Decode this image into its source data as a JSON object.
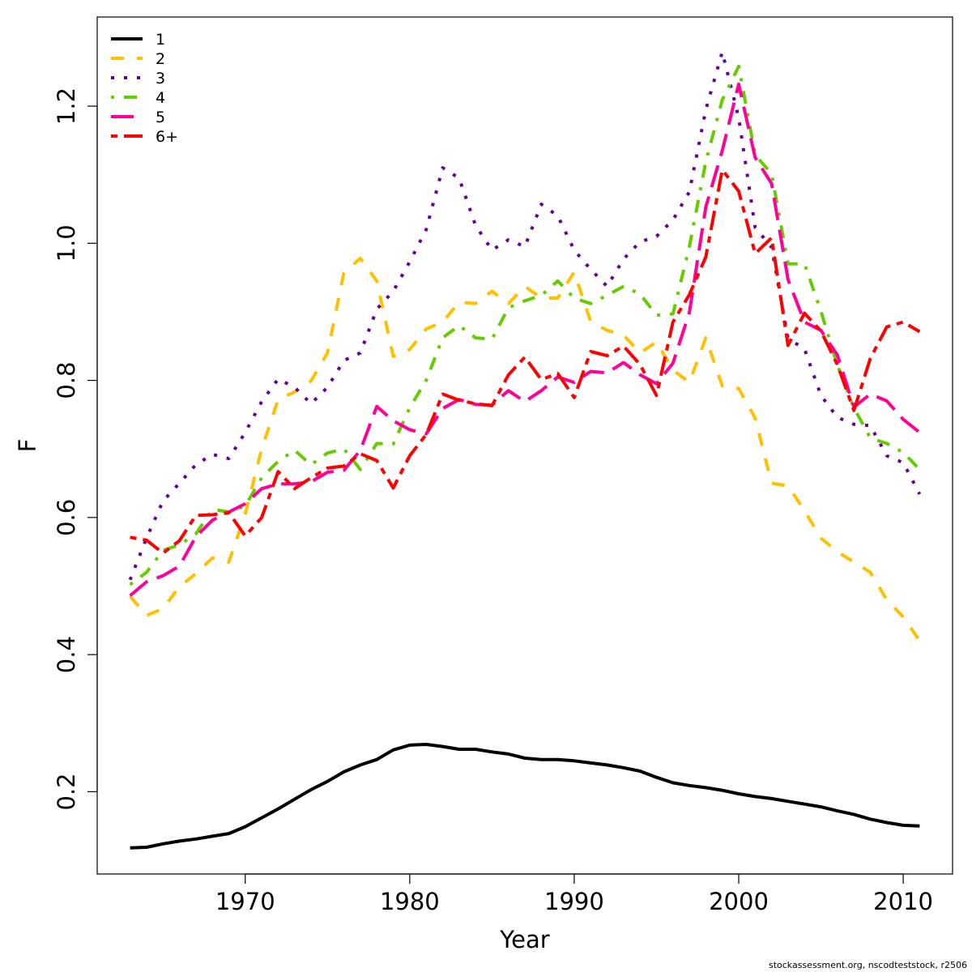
{
  "chart_data": {
    "type": "line",
    "xlabel": "Year",
    "ylabel": "F",
    "xlim": [
      1961.0,
      2013.0
    ],
    "ylim": [
      0.08,
      1.33
    ],
    "x_ticks": [
      1970,
      1980,
      1990,
      2000,
      2010
    ],
    "y_ticks": [
      0.2,
      0.4,
      0.6,
      0.8,
      1.0,
      1.2
    ],
    "x_tick_labels": [
      "1970",
      "1980",
      "1990",
      "2000",
      "2010"
    ],
    "y_tick_labels": [
      "0.2",
      "0.4",
      "0.6",
      "0.8",
      "1.0",
      "1.2"
    ],
    "grid": false,
    "legend_position": "top-left",
    "x": [
      1963,
      1964,
      1965,
      1966,
      1967,
      1968,
      1969,
      1970,
      1971,
      1972,
      1973,
      1974,
      1975,
      1976,
      1977,
      1978,
      1979,
      1980,
      1981,
      1982,
      1983,
      1984,
      1985,
      1986,
      1987,
      1988,
      1989,
      1990,
      1991,
      1992,
      1993,
      1994,
      1995,
      1996,
      1997,
      1998,
      1999,
      2000,
      2001,
      2002,
      2003,
      2004,
      2005,
      2006,
      2007,
      2008,
      2009,
      2010,
      2011
    ],
    "series": [
      {
        "name": "1",
        "color": "#000000",
        "dash": "solid",
        "values": [
          0.118,
          0.119,
          0.124,
          0.128,
          0.131,
          0.135,
          0.139,
          0.149,
          0.162,
          0.175,
          0.189,
          0.203,
          0.215,
          0.229,
          0.239,
          0.247,
          0.261,
          0.268,
          0.269,
          0.266,
          0.262,
          0.262,
          0.258,
          0.255,
          0.249,
          0.247,
          0.247,
          0.245,
          0.242,
          0.239,
          0.235,
          0.23,
          0.221,
          0.213,
          0.209,
          0.206,
          0.202,
          0.197,
          0.193,
          0.19,
          0.186,
          0.182,
          0.178,
          0.172,
          0.167,
          0.16,
          0.155,
          0.151,
          0.15
        ]
      },
      {
        "name": "2",
        "color": "#FFC000",
        "dash": "dashed",
        "values": [
          0.485,
          0.457,
          0.467,
          0.499,
          0.518,
          0.541,
          0.535,
          0.605,
          0.7,
          0.772,
          0.783,
          0.799,
          0.84,
          0.957,
          0.978,
          0.945,
          0.835,
          0.845,
          0.875,
          0.885,
          0.914,
          0.912,
          0.93,
          0.912,
          0.937,
          0.92,
          0.92,
          0.958,
          0.886,
          0.873,
          0.866,
          0.84,
          0.856,
          0.815,
          0.797,
          0.862,
          0.792,
          0.788,
          0.745,
          0.65,
          0.646,
          0.61,
          0.57,
          0.55,
          0.535,
          0.52,
          0.48,
          0.455,
          0.42
        ]
      },
      {
        "name": "3",
        "color": "#660099",
        "dash": "dotted",
        "values": [
          0.509,
          0.57,
          0.624,
          0.65,
          0.677,
          0.692,
          0.686,
          0.724,
          0.769,
          0.802,
          0.79,
          0.766,
          0.79,
          0.829,
          0.84,
          0.904,
          0.93,
          0.973,
          1.02,
          1.11,
          1.095,
          1.026,
          0.99,
          1.005,
          0.995,
          1.057,
          1.04,
          0.99,
          0.962,
          0.937,
          0.977,
          1.002,
          1.01,
          1.034,
          1.075,
          1.195,
          1.279,
          1.183,
          1.023,
          0.994,
          0.861,
          0.846,
          0.778,
          0.746,
          0.736,
          0.734,
          0.69,
          0.68,
          0.634
        ]
      },
      {
        "name": "4",
        "color": "#66CC00",
        "dash": "dotdash",
        "values": [
          0.502,
          0.52,
          0.552,
          0.56,
          0.576,
          0.612,
          0.608,
          0.617,
          0.658,
          0.682,
          0.698,
          0.677,
          0.694,
          0.7,
          0.67,
          0.708,
          0.707,
          0.76,
          0.8,
          0.862,
          0.88,
          0.862,
          0.86,
          0.906,
          0.916,
          0.924,
          0.945,
          0.92,
          0.912,
          0.924,
          0.937,
          0.926,
          0.895,
          0.897,
          0.995,
          1.119,
          1.209,
          1.258,
          1.129,
          1.101,
          0.97,
          0.97,
          0.901,
          0.822,
          0.76,
          0.716,
          0.708,
          0.695,
          0.67
        ]
      },
      {
        "name": "5",
        "color": "#FF0099",
        "dash": "longdash",
        "values": [
          0.486,
          0.506,
          0.515,
          0.529,
          0.572,
          0.596,
          0.608,
          0.62,
          0.642,
          0.649,
          0.649,
          0.652,
          0.666,
          0.669,
          0.698,
          0.762,
          0.741,
          0.728,
          0.722,
          0.759,
          0.772,
          0.765,
          0.764,
          0.785,
          0.769,
          0.785,
          0.805,
          0.797,
          0.813,
          0.811,
          0.826,
          0.808,
          0.795,
          0.825,
          0.899,
          1.053,
          1.135,
          1.232,
          1.125,
          1.087,
          0.947,
          0.885,
          0.873,
          0.837,
          0.761,
          0.78,
          0.77,
          0.743,
          0.724
        ]
      },
      {
        "name": "6+",
        "color": "#FF0000",
        "dash": "twodash",
        "values": [
          0.571,
          0.567,
          0.548,
          0.566,
          0.603,
          0.604,
          0.607,
          0.573,
          0.6,
          0.667,
          0.642,
          0.658,
          0.672,
          0.675,
          0.693,
          0.683,
          0.643,
          0.69,
          0.721,
          0.78,
          0.771,
          0.766,
          0.763,
          0.808,
          0.834,
          0.801,
          0.81,
          0.775,
          0.842,
          0.836,
          0.85,
          0.823,
          0.778,
          0.885,
          0.925,
          0.98,
          1.107,
          1.076,
          0.985,
          1.008,
          0.851,
          0.898,
          0.872,
          0.823,
          0.756,
          0.832,
          0.878,
          0.885,
          0.871
        ]
      }
    ]
  },
  "footer": "stockassessment.org, nscodteststock, r2506"
}
